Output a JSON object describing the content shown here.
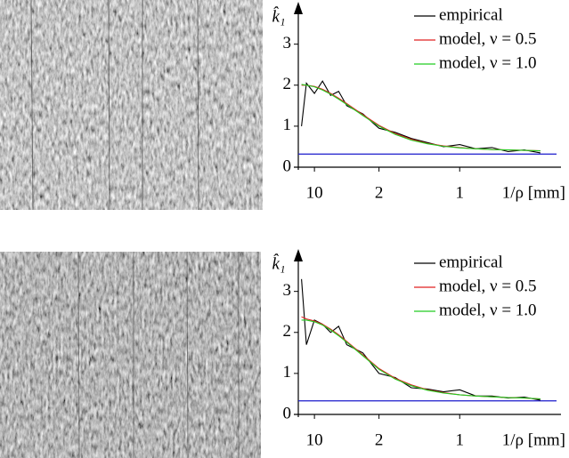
{
  "chart_data": [
    {
      "type": "line",
      "ylabel": "k̂₁",
      "xlabel": "1/ρ [mm]",
      "x": [
        0.02,
        0.05,
        0.1,
        0.15,
        0.2,
        0.25,
        0.3,
        0.4,
        0.5,
        0.6,
        0.7,
        0.8,
        0.9,
        1.0,
        1.1,
        1.2,
        1.3,
        1.4,
        1.5
      ],
      "series": [
        {
          "name": "empirical",
          "color": "#000000",
          "values": [
            1.0,
            2.05,
            1.8,
            2.1,
            1.75,
            1.85,
            1.5,
            1.3,
            0.95,
            0.85,
            0.7,
            0.6,
            0.5,
            0.55,
            0.45,
            0.48,
            0.38,
            0.42,
            0.35
          ]
        },
        {
          "name": "model, ν = 0.5",
          "color": "#e02020",
          "values": [
            2.0,
            2.0,
            1.97,
            1.9,
            1.8,
            1.68,
            1.55,
            1.28,
            1.02,
            0.82,
            0.68,
            0.58,
            0.52,
            0.48,
            0.45,
            0.43,
            0.42,
            0.41,
            0.4
          ]
        },
        {
          "name": "model, ν = 1.0",
          "color": "#22cc22",
          "values": [
            2.02,
            2.0,
            1.96,
            1.88,
            1.78,
            1.66,
            1.53,
            1.26,
            1.0,
            0.8,
            0.66,
            0.57,
            0.51,
            0.47,
            0.45,
            0.43,
            0.42,
            0.41,
            0.4
          ]
        }
      ],
      "hline": {
        "value": 0.32,
        "color": "#1a1acc"
      },
      "xlim": [
        0,
        1.6
      ],
      "xticks": [
        {
          "value": 0.1,
          "label": "10"
        },
        {
          "value": 0.5,
          "label": "2"
        },
        {
          "value": 1.0,
          "label": "1"
        }
      ],
      "ylim": [
        0,
        3.6
      ],
      "yticks": [
        0,
        1,
        2,
        3
      ],
      "legend": "top-right"
    },
    {
      "type": "line",
      "ylabel": "k̂₁",
      "xlabel": "1/ρ [mm]",
      "x": [
        0.02,
        0.05,
        0.1,
        0.15,
        0.2,
        0.25,
        0.3,
        0.4,
        0.5,
        0.6,
        0.7,
        0.8,
        0.9,
        1.0,
        1.1,
        1.2,
        1.3,
        1.4,
        1.5
      ],
      "series": [
        {
          "name": "empirical",
          "color": "#000000",
          "values": [
            3.3,
            1.7,
            2.3,
            2.2,
            2.0,
            2.15,
            1.7,
            1.5,
            1.0,
            0.9,
            0.65,
            0.62,
            0.55,
            0.6,
            0.45,
            0.45,
            0.4,
            0.42,
            0.35
          ]
        },
        {
          "name": "model, ν = 0.5",
          "color": "#e02020",
          "values": [
            2.38,
            2.33,
            2.28,
            2.2,
            2.08,
            1.94,
            1.78,
            1.45,
            1.12,
            0.88,
            0.72,
            0.6,
            0.53,
            0.48,
            0.45,
            0.43,
            0.41,
            0.4,
            0.38
          ]
        },
        {
          "name": "model, ν = 1.0",
          "color": "#22cc22",
          "values": [
            2.3,
            2.3,
            2.26,
            2.18,
            2.06,
            1.92,
            1.76,
            1.43,
            1.1,
            0.86,
            0.7,
            0.59,
            0.52,
            0.48,
            0.45,
            0.43,
            0.41,
            0.4,
            0.38
          ]
        }
      ],
      "hline": {
        "value": 0.33,
        "color": "#1a1acc"
      },
      "xlim": [
        0,
        1.6
      ],
      "xticks": [
        {
          "value": 0.1,
          "label": "10"
        },
        {
          "value": 0.5,
          "label": "2"
        },
        {
          "value": 1.0,
          "label": "1"
        }
      ],
      "ylim": [
        0,
        3.6
      ],
      "yticks": [
        0,
        1,
        2,
        3
      ],
      "legend": "top-right"
    }
  ]
}
